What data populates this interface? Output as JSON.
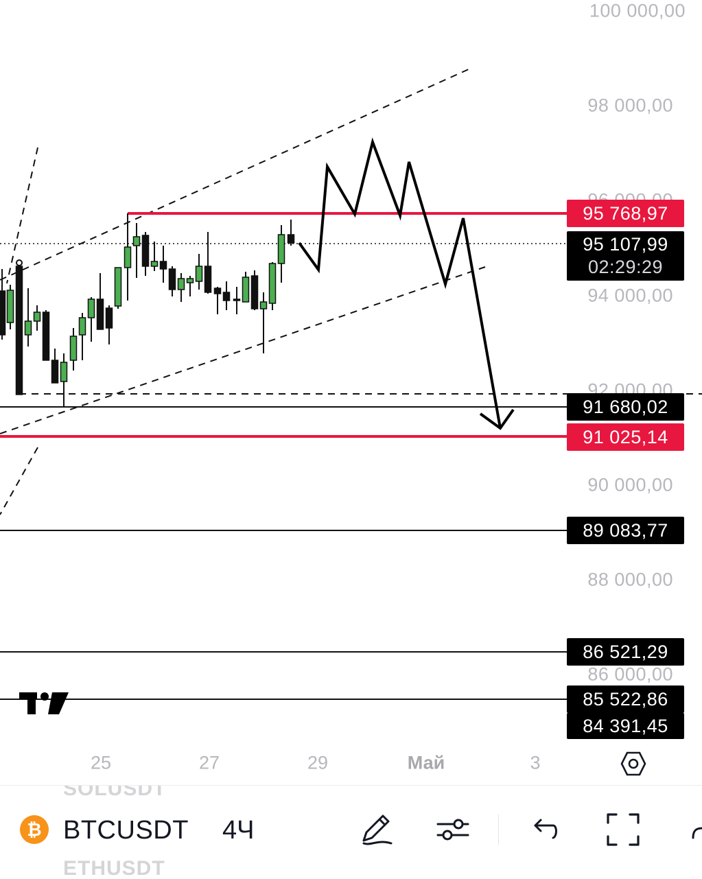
{
  "chart": {
    "price_axis_labels": [
      "100 000,00",
      "98 000,00",
      "96 000,00",
      "94 000,00",
      "92 000,00",
      "90 000,00",
      "88 000,00",
      "86 000,00"
    ],
    "price_tags": [
      {
        "value": "95 768,97",
        "color": "#e8173f"
      },
      {
        "value": "91 680,02",
        "color": "#000000"
      },
      {
        "value": "91 025,14",
        "color": "#e8173f"
      },
      {
        "value": "89 083,77",
        "color": "#000000"
      },
      {
        "value": "86 521,29",
        "color": "#000000"
      },
      {
        "value": "85 522,86",
        "color": "#000000"
      },
      {
        "value": "84 391,45",
        "color": "#000000"
      }
    ],
    "current_price": {
      "value": "95 107,99",
      "countdown": "02:29:29"
    },
    "time_axis_labels": [
      "25",
      "27",
      "29",
      "Май",
      "3"
    ],
    "colors": {
      "up_candle": "#4caf50",
      "down_candle": "#111111",
      "level_red": "#e8173f",
      "axis_text": "#b7b7bc"
    }
  },
  "toolbar": {
    "symbol": "BTCUSDT",
    "interval": "4Ч",
    "ghost_symbol_above": "SOLUSDT",
    "ghost_symbol_below": "ETHUSDT",
    "icons": [
      "bitcoin-icon",
      "draw-pen-icon",
      "indicators-icon",
      "undo-icon",
      "fullscreen-icon"
    ]
  }
}
